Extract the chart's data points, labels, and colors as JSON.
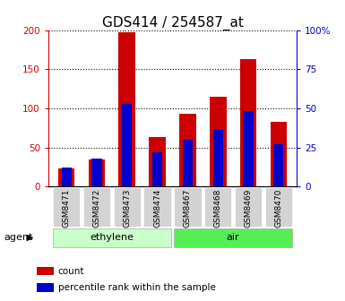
{
  "title": "GDS414 / 254587_at",
  "categories": [
    "GSM8471",
    "GSM8472",
    "GSM8473",
    "GSM8474",
    "GSM8467",
    "GSM8468",
    "GSM8469",
    "GSM8470"
  ],
  "count_values": [
    23,
    35,
    197,
    63,
    93,
    115,
    163,
    83
  ],
  "percentile_values": [
    12,
    18,
    53,
    22,
    30,
    37,
    48,
    27
  ],
  "ylim_left": [
    0,
    200
  ],
  "ylim_right": [
    0,
    100
  ],
  "yticks_left": [
    0,
    50,
    100,
    150,
    200
  ],
  "yticks_right": [
    0,
    25,
    50,
    75,
    100
  ],
  "ytick_labels_right": [
    "0",
    "25",
    "50",
    "75",
    "100%"
  ],
  "ytick_labels_left": [
    "0",
    "50",
    "100",
    "150",
    "200"
  ],
  "groups": [
    {
      "label": "ethylene",
      "indices": [
        0,
        1,
        2,
        3
      ],
      "color": "#c8ffc8"
    },
    {
      "label": "air",
      "indices": [
        4,
        5,
        6,
        7
      ],
      "color": "#55ee55"
    }
  ],
  "agent_label": "agent",
  "bar_width": 0.55,
  "count_color": "#cc0000",
  "percentile_color": "#0000cc",
  "legend_count": "count",
  "legend_percentile": "percentile rank within the sample",
  "title_fontsize": 11
}
